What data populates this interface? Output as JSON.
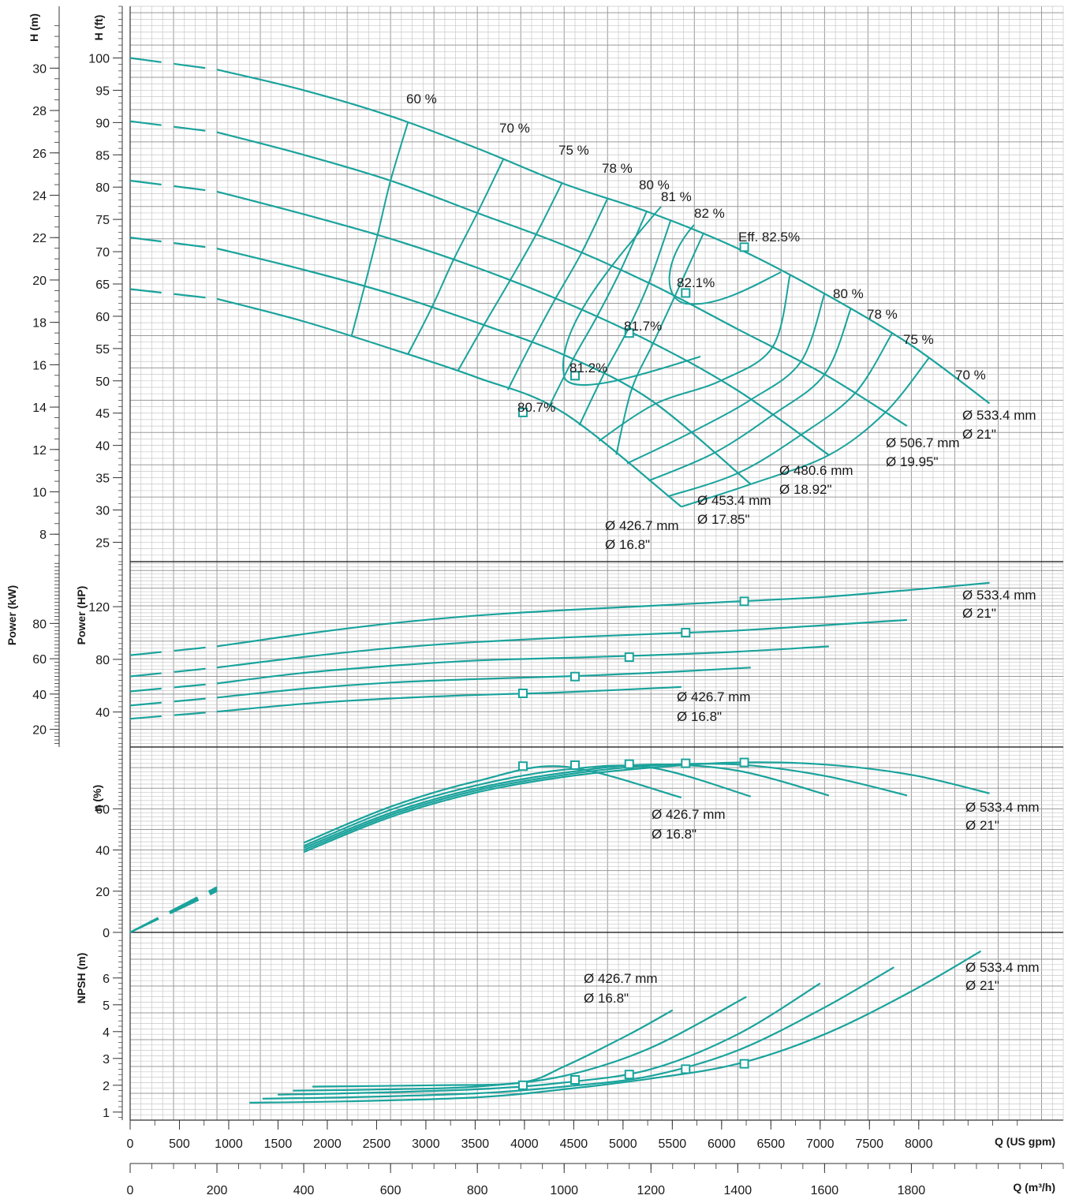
{
  "chart_data": {
    "type": "line",
    "colors": {
      "curve": "#1aa39c",
      "grid_minor": "#c8c8c8",
      "grid_major": "#9a9a9a",
      "frame": "#333333",
      "text": "#1a1a1a"
    },
    "x_axis": {
      "label_gpm": "Q (US gpm)",
      "label_m3h": "Q (m³/h)",
      "range_m3h": [
        0,
        2150
      ],
      "ticks_gpm": [
        0,
        500,
        1000,
        1500,
        2000,
        2500,
        3000,
        3500,
        4000,
        4500,
        5000,
        5500,
        6000,
        6500,
        7000,
        7500,
        8000
      ],
      "ticks_m3h": [
        0,
        200,
        400,
        600,
        800,
        1000,
        1200,
        1400,
        1600,
        1800
      ]
    },
    "head_panel": {
      "ylabel_left": "H (m)",
      "ylabel_right": "H (ft)",
      "ylim_ft": [
        22,
        108
      ],
      "ticks_m": [
        8,
        10,
        12,
        14,
        16,
        18,
        20,
        22,
        24,
        26,
        28,
        30
      ],
      "ticks_ft": [
        25,
        30,
        35,
        40,
        45,
        50,
        55,
        60,
        65,
        70,
        75,
        80,
        85,
        90,
        95,
        100
      ],
      "series": [
        {
          "name": "Ø 533.4 mm",
          "x": [
            0,
            200,
            400,
            600,
            800,
            1000,
            1200,
            1400,
            1600,
            1800,
            1980
          ],
          "y": [
            100,
            98.2,
            95,
            91,
            86,
            80.5,
            76,
            70.5,
            63.5,
            55.5,
            46.5
          ]
        },
        {
          "name": "Ø 506.7 mm",
          "x": [
            0,
            200,
            400,
            600,
            800,
            1000,
            1200,
            1400,
            1600,
            1790
          ],
          "y": [
            90.2,
            88.5,
            85,
            81,
            76,
            71,
            65,
            58,
            51,
            43
          ]
        },
        {
          "name": "Ø 480.6 mm",
          "x": [
            0,
            200,
            400,
            600,
            800,
            1000,
            1200,
            1400,
            1610
          ],
          "y": [
            81,
            79.3,
            75.8,
            72,
            67.5,
            62.2,
            56,
            48.5,
            38.5
          ]
        },
        {
          "name": "Ø 453.4 mm",
          "x": [
            0,
            200,
            400,
            600,
            800,
            1000,
            1200,
            1430
          ],
          "y": [
            72.2,
            70.5,
            67.2,
            63.5,
            59,
            54,
            47,
            34
          ]
        },
        {
          "name": "Ø 426.7 mm",
          "x": [
            0,
            200,
            400,
            600,
            800,
            1000,
            1270
          ],
          "y": [
            64.2,
            62.7,
            59.2,
            55,
            50.5,
            45,
            30.5
          ]
        }
      ],
      "diameter_labels": [
        {
          "line1": "Ø 533.4  mm",
          "line2": "Ø 21\""
        },
        {
          "line1": "Ø 506.7  mm",
          "line2": "Ø 19.95\""
        },
        {
          "line1": "Ø 480.6  mm",
          "line2": "Ø 18.92\""
        },
        {
          "line1": "Ø 453.4  mm",
          "line2": "Ø 17.85\""
        },
        {
          "line1": "Ø 426.7  mm",
          "line2": "Ø 16.8\""
        }
      ],
      "efficiency_labels": [
        "60 %",
        "70 %",
        "75 %",
        "78 %",
        "80 %",
        "81 %",
        "82 %",
        "Eff.  82.5%",
        "80 %",
        "78 %",
        "75 %",
        "70 %"
      ],
      "bep_labels": [
        "82.1%",
        "81.7%",
        "81.2%",
        "80.7%"
      ],
      "bep_points": [
        {
          "x": 1415,
          "y": 70.7
        },
        {
          "x": 1280,
          "y": 63.6
        },
        {
          "x": 1150,
          "y": 57.4
        },
        {
          "x": 1025,
          "y": 50.8
        },
        {
          "x": 905,
          "y": 45.1
        }
      ]
    },
    "power_panel": {
      "ylabel_left": "Power (kW)",
      "ylabel_right": "Power (HP)",
      "ylim_kw": [
        10,
        115
      ],
      "ticks_kw": [
        20,
        40,
        60,
        80
      ],
      "ticks_hp": [
        40,
        80,
        120
      ],
      "series": [
        {
          "name": "Ø 533.4 mm",
          "x": [
            0,
            200,
            400,
            600,
            800,
            1000,
            1200,
            1400,
            1600,
            1800,
            1980
          ],
          "y": [
            62,
            67,
            74,
            80,
            84.5,
            87.5,
            90,
            92.5,
            95,
            99,
            103
          ]
        },
        {
          "name": "Ø 506.7 mm",
          "x": [
            0,
            200,
            400,
            600,
            800,
            1000,
            1200,
            1400,
            1600,
            1790
          ],
          "y": [
            50,
            55,
            61,
            66,
            69.5,
            72,
            74,
            76,
            79,
            82
          ]
        },
        {
          "name": "Ø 480.6 mm",
          "x": [
            0,
            200,
            400,
            600,
            800,
            1000,
            1200,
            1400,
            1610
          ],
          "y": [
            41.5,
            46,
            52,
            56,
            59,
            60.5,
            62,
            64,
            67
          ]
        },
        {
          "name": "Ø 453.4 mm",
          "x": [
            0,
            200,
            400,
            600,
            800,
            1000,
            1200,
            1430
          ],
          "y": [
            33.5,
            38,
            43,
            46.5,
            48.5,
            50,
            52,
            55
          ]
        },
        {
          "name": "Ø 426.7 mm",
          "x": [
            0,
            200,
            400,
            600,
            800,
            1000,
            1270
          ],
          "y": [
            26,
            30,
            34.5,
            37.5,
            39.5,
            41,
            44
          ]
        }
      ],
      "bep_points": [
        {
          "x": 1415,
          "y": 92.5
        },
        {
          "x": 1280,
          "y": 74.8
        },
        {
          "x": 1150,
          "y": 60.9
        },
        {
          "x": 1025,
          "y": 49.9
        },
        {
          "x": 905,
          "y": 40.4
        }
      ],
      "labels_top": {
        "line1": "Ø 533.4  mm",
        "line2": "Ø 21\""
      },
      "labels_bottom": {
        "line1": "Ø 426.7  mm",
        "line2": "Ø 16.8\""
      }
    },
    "eff_panel": {
      "ylabel": "η (%)",
      "ylim": [
        0,
        90
      ],
      "ticks": [
        0,
        20,
        40,
        60
      ],
      "series": [
        {
          "name": "Ø 533.4 mm",
          "x": [
            0,
            200,
            400,
            600,
            800,
            1000,
            1200,
            1400,
            1600,
            1800,
            1980
          ],
          "y": [
            0,
            20,
            39,
            56,
            68,
            75.5,
            80,
            82.5,
            81.5,
            76.5,
            67.5
          ]
        },
        {
          "name": "Ø 506.7 mm",
          "x": [
            0,
            200,
            400,
            600,
            800,
            1000,
            1200,
            1400,
            1600,
            1790
          ],
          "y": [
            0,
            20.5,
            40,
            57,
            69,
            76.5,
            81,
            81.5,
            76,
            66.5
          ]
        },
        {
          "name": "Ø 480.6 mm",
          "x": [
            0,
            200,
            400,
            600,
            800,
            1000,
            1200,
            1400,
            1610
          ],
          "y": [
            0,
            21,
            41,
            58,
            70,
            77.5,
            81.5,
            78.5,
            66.5
          ]
        },
        {
          "name": "Ø 453.4 mm",
          "x": [
            0,
            200,
            400,
            600,
            800,
            1000,
            1200,
            1430
          ],
          "y": [
            0,
            21.5,
            42,
            59.5,
            71.5,
            79,
            80,
            66
          ]
        },
        {
          "name": "Ø 426.7 mm",
          "x": [
            0,
            200,
            400,
            600,
            800,
            1000,
            1270
          ],
          "y": [
            0,
            22,
            43.5,
            61,
            73.5,
            80.5,
            65.5
          ]
        }
      ],
      "bep_points": [
        {
          "x": 1415,
          "y": 82.5
        },
        {
          "x": 1280,
          "y": 82.1
        },
        {
          "x": 1150,
          "y": 81.7
        },
        {
          "x": 1025,
          "y": 81.2
        },
        {
          "x": 905,
          "y": 80.7
        }
      ],
      "labels_top": {
        "line1": "Ø 533.4  mm",
        "line2": "Ø 21\""
      },
      "labels_bottom": {
        "line1": "Ø 426.7  mm",
        "line2": "Ø 16.8\""
      }
    },
    "npsh_panel": {
      "ylabel": "NPSH (m)",
      "ylim": [
        0.7,
        7.7
      ],
      "ticks": [
        1,
        2,
        3,
        4,
        5,
        6
      ],
      "series": [
        {
          "name": "Ø 533.4 mm",
          "x": [
            275,
            500,
            800,
            1000,
            1200,
            1400,
            1600,
            1800,
            1960
          ],
          "y": [
            1.35,
            1.4,
            1.55,
            1.85,
            2.25,
            2.8,
            3.9,
            5.5,
            7.0
          ]
        },
        {
          "name": "Ø 506.7 mm",
          "x": [
            305,
            500,
            800,
            1000,
            1200,
            1400,
            1600,
            1760
          ],
          "y": [
            1.5,
            1.55,
            1.7,
            1.95,
            2.35,
            3.3,
            4.9,
            6.4
          ]
        },
        {
          "name": "Ø 480.6 mm",
          "x": [
            340,
            500,
            800,
            1000,
            1200,
            1400,
            1590
          ],
          "y": [
            1.65,
            1.7,
            1.85,
            2.1,
            2.6,
            3.9,
            5.8
          ]
        },
        {
          "name": "Ø 453.4 mm",
          "x": [
            375,
            600,
            800,
            1000,
            1200,
            1420
          ],
          "y": [
            1.8,
            1.85,
            1.95,
            2.35,
            3.4,
            5.3
          ]
        },
        {
          "name": "Ø 426.7 mm",
          "x": [
            420,
            700,
            900,
            1000,
            1150,
            1250
          ],
          "y": [
            1.95,
            2.0,
            2.1,
            2.7,
            3.9,
            4.8
          ]
        }
      ],
      "bep_points": [
        {
          "x": 1415,
          "y": 2.8
        },
        {
          "x": 1280,
          "y": 2.6
        },
        {
          "x": 1150,
          "y": 2.4
        },
        {
          "x": 1025,
          "y": 2.2
        },
        {
          "x": 905,
          "y": 2.0
        }
      ],
      "labels_top": {
        "line1": "Ø 533.4  mm",
        "line2": "Ø 21\""
      },
      "labels_bottom": {
        "line1": "Ø 426.7  mm",
        "line2": "Ø 16.8\""
      }
    }
  }
}
